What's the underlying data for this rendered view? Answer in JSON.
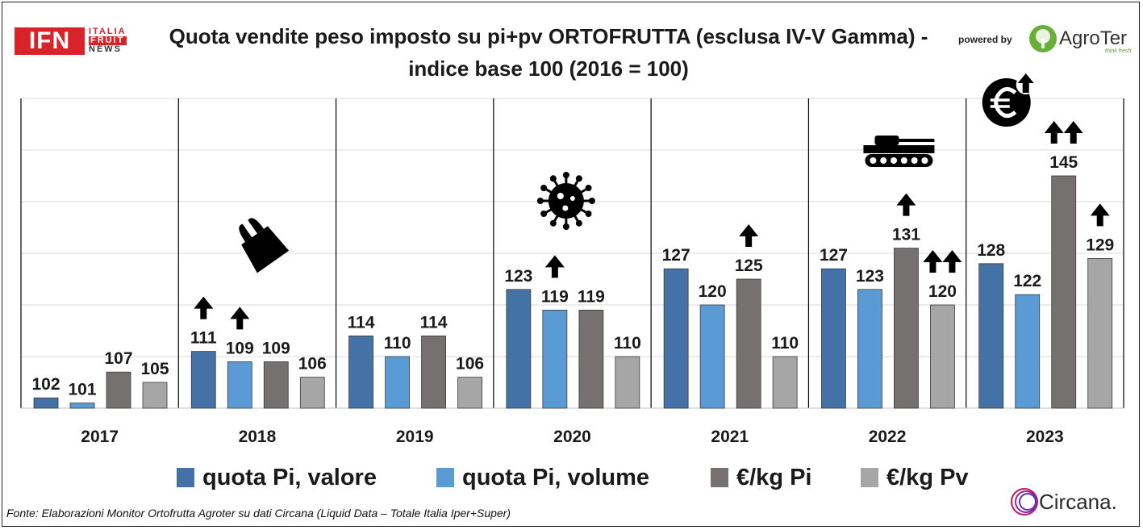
{
  "header": {
    "title_line1": "Quota vendite peso imposto su pi+pv ORTOFRUTTA (esclusa IV-V Gamma) -",
    "title_line2": "indice base 100 (2016 = 100)",
    "logo_box": "IFN",
    "logo_line1": "ITALIA",
    "logo_line2": "FRUIT",
    "logo_line3": "NEWS",
    "powered_by": "powered by",
    "sponsor_name": "AgroTer",
    "sponsor_tagline": "think fresh"
  },
  "footer": {
    "source": "Fonte: Elaborazioni Monitor Ortofrutta Agroter su dati  Circana (Liquid Data – Totale Italia Iper+Super)",
    "partner_logo": "Circana."
  },
  "chart_data": {
    "type": "bar",
    "title": "Quota vendite peso imposto su pi+pv ORTOFRUTTA (esclusa IV-V Gamma) - indice base 100 (2016 = 100)",
    "categories": [
      "2017",
      "2018",
      "2019",
      "2020",
      "2021",
      "2022",
      "2023"
    ],
    "series": [
      {
        "name": "quota Pi, valore",
        "color": "#4472a6",
        "values": [
          102,
          111,
          114,
          123,
          127,
          127,
          128
        ]
      },
      {
        "name": "quota Pi, volume",
        "color": "#5b9bd5",
        "values": [
          101,
          109,
          110,
          119,
          120,
          123,
          122
        ]
      },
      {
        "name": "€/kg Pi",
        "color": "#767171",
        "values": [
          107,
          109,
          114,
          119,
          125,
          131,
          145
        ]
      },
      {
        "name": "€/kg Pv",
        "color": "#a6a6a6",
        "values": [
          105,
          106,
          106,
          110,
          110,
          120,
          129
        ]
      }
    ],
    "ylim": [
      100,
      160
    ],
    "grid": true,
    "legend_position": "bottom",
    "annotations": [
      {
        "category": "2018",
        "icon": "shopping-bag-icon"
      },
      {
        "category": "2020",
        "icon": "virus-icon"
      },
      {
        "category": "2022",
        "icon": "tank-icon"
      },
      {
        "category": "2023",
        "icon": "euro-up-icon"
      },
      {
        "category": "2018",
        "series": 0,
        "icon": "up-arrow-icon",
        "count": 1
      },
      {
        "category": "2018",
        "series": 1,
        "icon": "up-arrow-icon",
        "count": 1
      },
      {
        "category": "2020",
        "series": 1,
        "icon": "up-arrow-icon",
        "count": 1
      },
      {
        "category": "2021",
        "series": 2,
        "icon": "up-arrow-icon",
        "count": 1
      },
      {
        "category": "2022",
        "series": 2,
        "icon": "up-arrow-icon",
        "count": 1
      },
      {
        "category": "2022",
        "series": 3,
        "icon": "up-arrow-icon",
        "count": 2
      },
      {
        "category": "2023",
        "series": 2,
        "icon": "up-arrow-icon",
        "count": 2
      },
      {
        "category": "2023",
        "series": 3,
        "icon": "up-arrow-icon",
        "count": 1
      }
    ]
  }
}
